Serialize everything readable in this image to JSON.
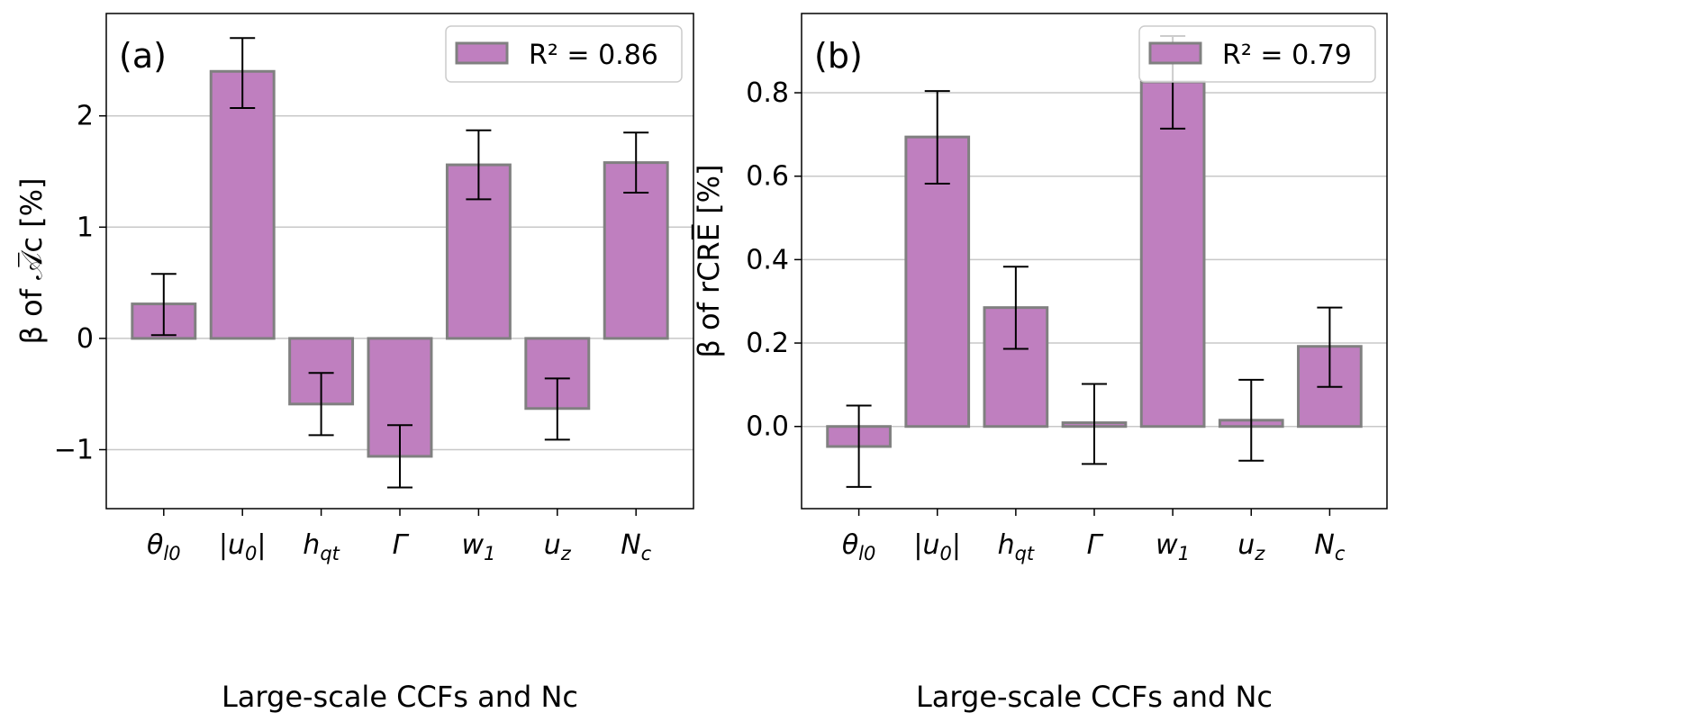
{
  "chart_data": [
    {
      "type": "bar",
      "panel_label": "(a)",
      "categories": [
        {
          "base": "θ",
          "sub": "l0"
        },
        {
          "base": "|u",
          "sub": "0",
          "tail": "|"
        },
        {
          "base": "h",
          "sub": "qt"
        },
        {
          "base": "Γ",
          "sub": ""
        },
        {
          "base": "w",
          "sub": "1"
        },
        {
          "base": "u",
          "sub": "z"
        },
        {
          "base": "N",
          "sub": "c"
        }
      ],
      "values": [
        0.31,
        2.4,
        -0.59,
        -1.06,
        1.56,
        -0.63,
        1.58
      ],
      "err_low": [
        0.03,
        2.07,
        -0.87,
        -1.34,
        1.25,
        -0.91,
        1.31
      ],
      "err_high": [
        0.58,
        2.7,
        -0.31,
        -0.78,
        1.87,
        -0.36,
        1.85
      ],
      "ylim": [
        -1.53,
        2.92
      ],
      "yticks": [
        -1,
        0,
        1,
        2
      ],
      "ytick_labels": [
        "−1",
        "0",
        "1",
        "2"
      ],
      "ylabel": "β of 𝒜̅c [%]",
      "xlabel": "Large-scale CCFs and Nc",
      "legend": "R² = 0.86",
      "legend_placement": "top-right",
      "grid": "y"
    },
    {
      "type": "bar",
      "panel_label": "(b)",
      "categories": [
        {
          "base": "θ",
          "sub": "l0"
        },
        {
          "base": "|u",
          "sub": "0",
          "tail": "|"
        },
        {
          "base": "h",
          "sub": "qt"
        },
        {
          "base": "Γ",
          "sub": ""
        },
        {
          "base": "w",
          "sub": "1"
        },
        {
          "base": "u",
          "sub": "z"
        },
        {
          "base": "N",
          "sub": "c"
        }
      ],
      "values": [
        -0.048,
        0.694,
        0.285,
        0.009,
        0.826,
        0.015,
        0.192
      ],
      "err_low": [
        -0.145,
        0.582,
        0.186,
        -0.09,
        0.714,
        -0.082,
        0.095
      ],
      "err_high": [
        0.05,
        0.804,
        0.383,
        0.102,
        0.936,
        0.112,
        0.285
      ],
      "ylim": [
        -0.197,
        0.99
      ],
      "yticks": [
        0.0,
        0.2,
        0.4,
        0.6,
        0.8
      ],
      "ytick_labels": [
        "0.0",
        "0.2",
        "0.4",
        "0.6",
        "0.8"
      ],
      "ylabel": "β of rCRE̅ [%]",
      "xlabel": "Large-scale CCFs and Nc",
      "legend": "R² = 0.79",
      "legend_placement": "top-right",
      "grid": "y"
    }
  ],
  "colors": {
    "bar": "#bf7fbf",
    "edge": "#808080",
    "grid": "#c8c8c8"
  }
}
